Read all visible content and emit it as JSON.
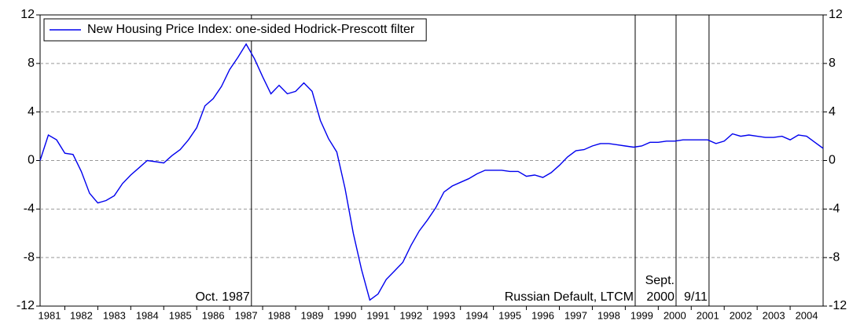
{
  "chart_data": {
    "type": "line",
    "x": [
      1981.25,
      1981.5,
      1981.75,
      1982,
      1982.25,
      1982.5,
      1982.75,
      1983,
      1983.25,
      1983.5,
      1983.75,
      1984,
      1984.25,
      1984.5,
      1984.75,
      1985,
      1985.25,
      1985.5,
      1985.75,
      1986,
      1986.25,
      1986.5,
      1986.75,
      1987,
      1987.25,
      1987.5,
      1987.75,
      1988,
      1988.25,
      1988.5,
      1988.75,
      1989,
      1989.25,
      1989.5,
      1989.75,
      1990,
      1990.25,
      1990.5,
      1990.75,
      1991,
      1991.25,
      1991.5,
      1991.75,
      1992,
      1992.25,
      1992.5,
      1992.75,
      1993,
      1993.25,
      1993.5,
      1993.75,
      1994,
      1994.25,
      1994.5,
      1994.75,
      1995,
      1995.25,
      1995.5,
      1995.75,
      1996,
      1996.25,
      1996.5,
      1996.75,
      1997,
      1997.25,
      1997.5,
      1997.75,
      1998,
      1998.25,
      1998.5,
      1998.75,
      1999,
      1999.25,
      1999.5,
      1999.75,
      2000,
      2000.25,
      2000.5,
      2000.75,
      2001,
      2001.25,
      2001.5,
      2001.75,
      2002,
      2002.25,
      2002.5,
      2002.75,
      2003,
      2003.25,
      2003.5,
      2003.75,
      2004,
      2004.25,
      2004.5,
      2004.75,
      2005
    ],
    "series": [
      {
        "name": "New Housing Price Index: one-sided Hodrick-Prescott filter",
        "color": "#0000ee",
        "values": [
          0,
          2.1,
          1.7,
          0.6,
          0.5,
          -0.9,
          -2.7,
          -3.5,
          -3.3,
          -2.9,
          -1.9,
          -1.2,
          -0.6,
          0,
          -0.1,
          -0.2,
          0.4,
          0.9,
          1.7,
          2.7,
          4.5,
          5.1,
          6.1,
          7.5,
          8.5,
          9.6,
          8.4,
          6.9,
          5.5,
          6.2,
          5.5,
          5.7,
          6.4,
          5.7,
          3.3,
          1.8,
          0.7,
          -2.3,
          -6,
          -9,
          -11.5,
          -11,
          -9.8,
          -9.1,
          -8.4,
          -7,
          -5.8,
          -4.9,
          -3.9,
          -2.6,
          -2.1,
          -1.8,
          -1.5,
          -1.1,
          -0.8,
          -0.8,
          -0.8,
          -0.9,
          -0.9,
          -1.3,
          -1.2,
          -1.4,
          -1,
          -0.4,
          0.3,
          0.8,
          0.9,
          1.2,
          1.4,
          1.4,
          1.3,
          1.2,
          1.1,
          1.2,
          1.5,
          1.5,
          1.6,
          1.6,
          1.7,
          1.7,
          1.7,
          1.7,
          1.4,
          1.6,
          2.2,
          2,
          2.1,
          2,
          1.9,
          1.9,
          2,
          1.7,
          2.1,
          2,
          1.5,
          1
        ]
      }
    ],
    "xlim": [
      1981.25,
      2005
    ],
    "xticks": [
      1981,
      1982,
      1983,
      1984,
      1985,
      1986,
      1987,
      1988,
      1989,
      1990,
      1991,
      1992,
      1993,
      1994,
      1995,
      1996,
      1997,
      1998,
      1999,
      2000,
      2001,
      2002,
      2003,
      2004
    ],
    "ylim": [
      -12,
      12
    ],
    "yticks": [
      -12,
      -8,
      -4,
      0,
      4,
      8,
      12
    ],
    "grid": true,
    "legend": "top-left",
    "annotations": [
      {
        "x": 1987.66,
        "lines": [
          "Oct. 1987"
        ]
      },
      {
        "x": 1999.3,
        "lines": [
          "Russian Default, LTCM"
        ]
      },
      {
        "x": 2000.54,
        "lines": [
          "Sept.",
          "2000"
        ]
      },
      {
        "x": 2001.54,
        "lines": [
          "9/11"
        ]
      }
    ]
  }
}
